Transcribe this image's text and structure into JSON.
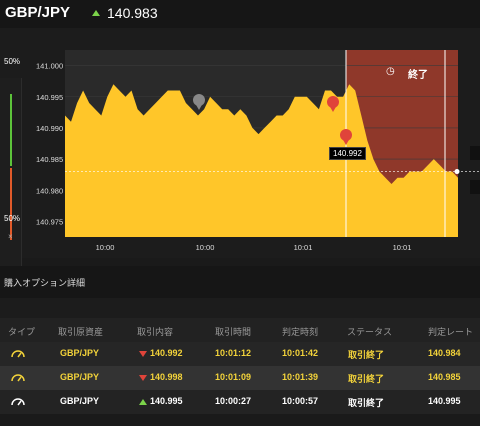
{
  "header": {
    "pair": "GBP/JPY",
    "rate": "140.983",
    "direction": "up",
    "up_color": "#7bd34a"
  },
  "gauge": {
    "top_label": "50%",
    "bottom_label": "50%",
    "close_label": "×"
  },
  "chart": {
    "y_ticks": [
      "141.000",
      "140.995",
      "140.990",
      "140.985",
      "140.980",
      "140.975"
    ],
    "x_ticks": [
      "10:00",
      "10:00",
      "10:01",
      "10:01"
    ],
    "end_label": "終了",
    "current_price_tag": "140.992",
    "fill_color": "#ffc629",
    "expiry_zone_color": "#9a3a2a",
    "chart_data": {
      "type": "area",
      "y_range": [
        140.9725,
        141.0025
      ],
      "values": [
        140.992,
        140.991,
        140.994,
        140.996,
        140.994,
        140.993,
        140.992,
        140.995,
        140.997,
        140.996,
        140.995,
        140.996,
        140.993,
        140.992,
        140.993,
        140.994,
        140.995,
        140.996,
        140.996,
        140.996,
        140.994,
        140.993,
        140.992,
        140.993,
        140.995,
        140.994,
        140.993,
        140.993,
        140.992,
        140.993,
        140.992,
        140.99,
        140.989,
        140.99,
        140.991,
        140.992,
        140.992,
        140.993,
        140.995,
        140.995,
        140.995,
        140.994,
        140.993,
        140.996,
        140.996,
        140.995,
        140.995,
        140.997,
        140.996,
        140.992,
        140.988,
        140.985,
        140.983,
        140.982,
        140.981,
        140.982,
        140.982,
        140.983,
        140.983,
        140.983,
        140.984,
        140.985,
        140.984,
        140.983,
        140.983,
        140.982
      ]
    }
  },
  "section": {
    "title": "購入オプション詳細"
  },
  "table": {
    "headers": [
      "タイプ",
      "取引原資産",
      "取引内容",
      "取引時間",
      "判定時刻",
      "ステータス",
      "判定レート"
    ],
    "rows": [
      {
        "pair": "GBP/JPY",
        "direction": "down",
        "rate": "140.992",
        "trade_time": "10:01:12",
        "judge_time": "10:01:42",
        "status": "取引終了",
        "judge_rate": "140.984"
      },
      {
        "pair": "GBP/JPY",
        "direction": "down",
        "rate": "140.998",
        "trade_time": "10:01:09",
        "judge_time": "10:01:39",
        "status": "取引終了",
        "judge_rate": "140.985"
      },
      {
        "pair": "GBP/JPY",
        "direction": "up",
        "rate": "140.995",
        "trade_time": "10:00:27",
        "judge_time": "10:00:57",
        "status": "取引終了",
        "judge_rate": "140.995"
      }
    ]
  }
}
